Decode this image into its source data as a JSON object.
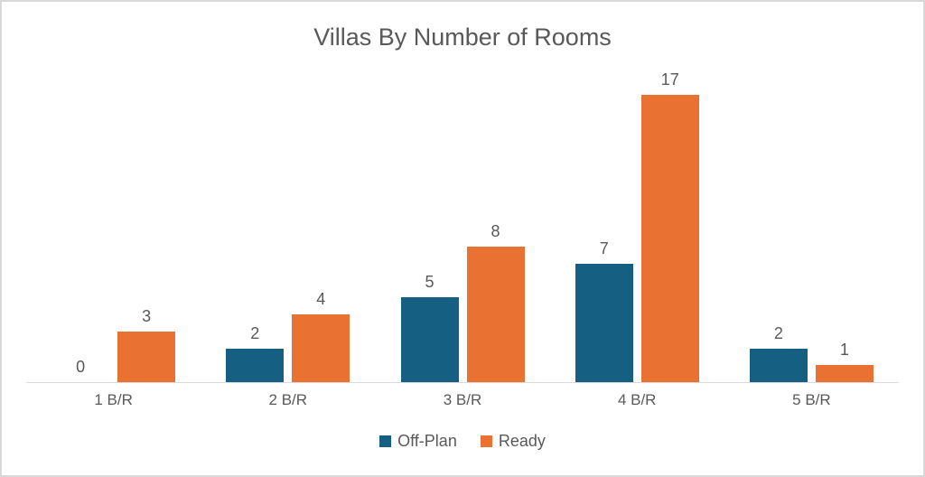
{
  "title": "Villas By Number of Rooms",
  "chart_data": {
    "type": "bar",
    "title": "Villas By Number of Rooms",
    "categories": [
      "1 B/R",
      "2 B/R",
      "3 B/R",
      "4 B/R",
      "5 B/R"
    ],
    "series": [
      {
        "name": "Off-Plan",
        "color": "#156082",
        "values": [
          0,
          2,
          5,
          7,
          2
        ]
      },
      {
        "name": "Ready",
        "color": "#E97132",
        "values": [
          3,
          4,
          8,
          17,
          1
        ]
      }
    ],
    "ylim": [
      0,
      18
    ],
    "grid": false,
    "data_labels": true,
    "legend_position": "bottom",
    "xlabel": "",
    "ylabel": ""
  },
  "legend": {
    "items": [
      {
        "label": "Off-Plan",
        "color": "#156082"
      },
      {
        "label": "Ready",
        "color": "#E97132"
      }
    ]
  },
  "colors": {
    "text": "#595959",
    "axis_line": "#D9D9D9",
    "frame_border": "#D9D9D9",
    "background": "#FFFFFF"
  }
}
